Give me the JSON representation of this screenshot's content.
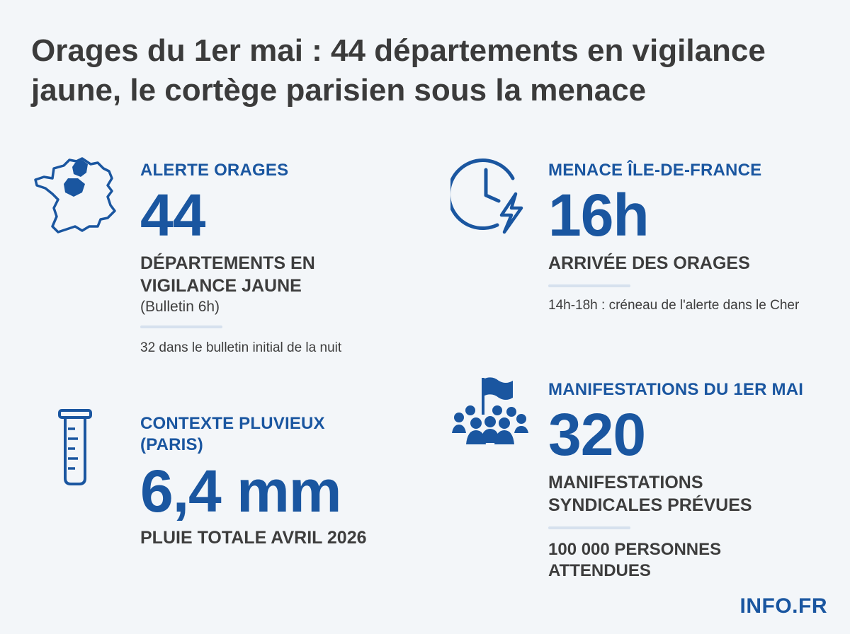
{
  "title": "Orages du 1er mai : 44 départements en vigilance jaune, le cortège parisien sous la menace",
  "colors": {
    "accent": "#1a56a0",
    "text": "#3d3d3d",
    "background": "#f3f6f9",
    "divider": "#d6e1ee"
  },
  "cards": {
    "alerte": {
      "icon": "france-map-icon",
      "label": "ALERTE ORAGES",
      "value": "44",
      "desc_line1": "DÉPARTEMENTS EN",
      "desc_line2": "VIGILANCE JAUNE",
      "note": "(Bulletin 6h)",
      "footnote": "32 dans le bulletin initial de la nuit"
    },
    "menace": {
      "icon": "clock-lightning-icon",
      "label": "MENACE ÎLE-DE-FRANCE",
      "value": "16h",
      "desc": "ARRIVÉE DES ORAGES",
      "footnote": "14h-18h : créneau de l'alerte dans le Cher"
    },
    "pluie": {
      "icon": "rain-gauge-icon",
      "label_line1": "CONTEXTE PLUVIEUX",
      "label_line2": "(PARIS)",
      "value": "6,4 mm",
      "desc": "PLUIE TOTALE AVRIL 2026"
    },
    "manif": {
      "icon": "crowd-flag-icon",
      "label": "MANIFESTATIONS DU 1ER MAI",
      "value": "320",
      "desc_line1": "MANIFESTATIONS",
      "desc_line2": "SYNDICALES PRÉVUES",
      "footnote_line1": "100 000 PERSONNES",
      "footnote_line2": "ATTENDUES"
    }
  },
  "brand": "INFO.FR"
}
